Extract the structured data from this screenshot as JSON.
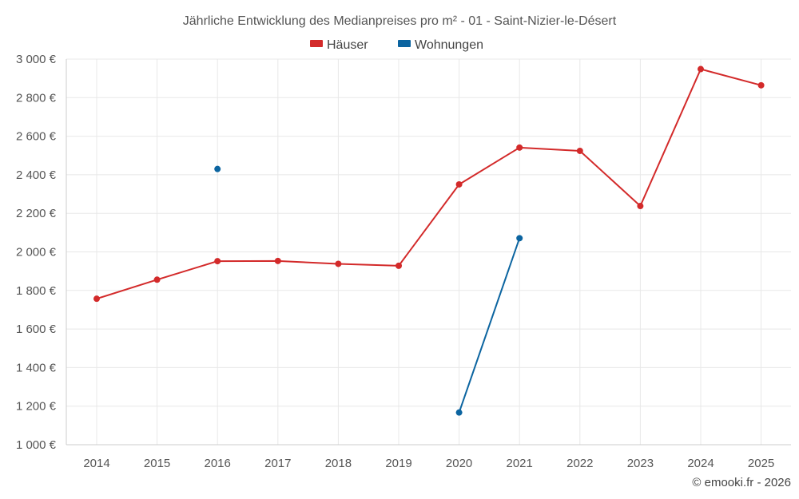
{
  "chart_data": {
    "type": "line",
    "title": "Jährliche Entwicklung des Medianpreises pro m² - 01 - Saint-Nizier-le-Désert",
    "categories": [
      "2014",
      "2015",
      "2016",
      "2017",
      "2018",
      "2019",
      "2020",
      "2021",
      "2022",
      "2023",
      "2024",
      "2025"
    ],
    "ylim": [
      1000,
      3000
    ],
    "yticks": [
      1000,
      1200,
      1400,
      1600,
      1800,
      2000,
      2200,
      2400,
      2600,
      2800,
      3000
    ],
    "ytick_labels": [
      "1 000 €",
      "1 200 €",
      "1 400 €",
      "1 600 €",
      "1 800 €",
      "2 000 €",
      "2 200 €",
      "2 400 €",
      "2 600 €",
      "2 800 €",
      "3 000 €"
    ],
    "grid": true,
    "legend_position": "top-center",
    "series": [
      {
        "name": "Häuser",
        "color": "#d32a2a",
        "values": [
          1757,
          1856,
          1952,
          1953,
          1938,
          1928,
          2350,
          2541,
          2524,
          2238,
          2948,
          2864
        ]
      },
      {
        "name": "Wohnungen",
        "color": "#0b64a0",
        "values": [
          null,
          null,
          2430,
          null,
          null,
          null,
          1167,
          2071,
          null,
          null,
          null,
          null
        ]
      }
    ]
  },
  "credit": "© emooki.fr - 2026"
}
